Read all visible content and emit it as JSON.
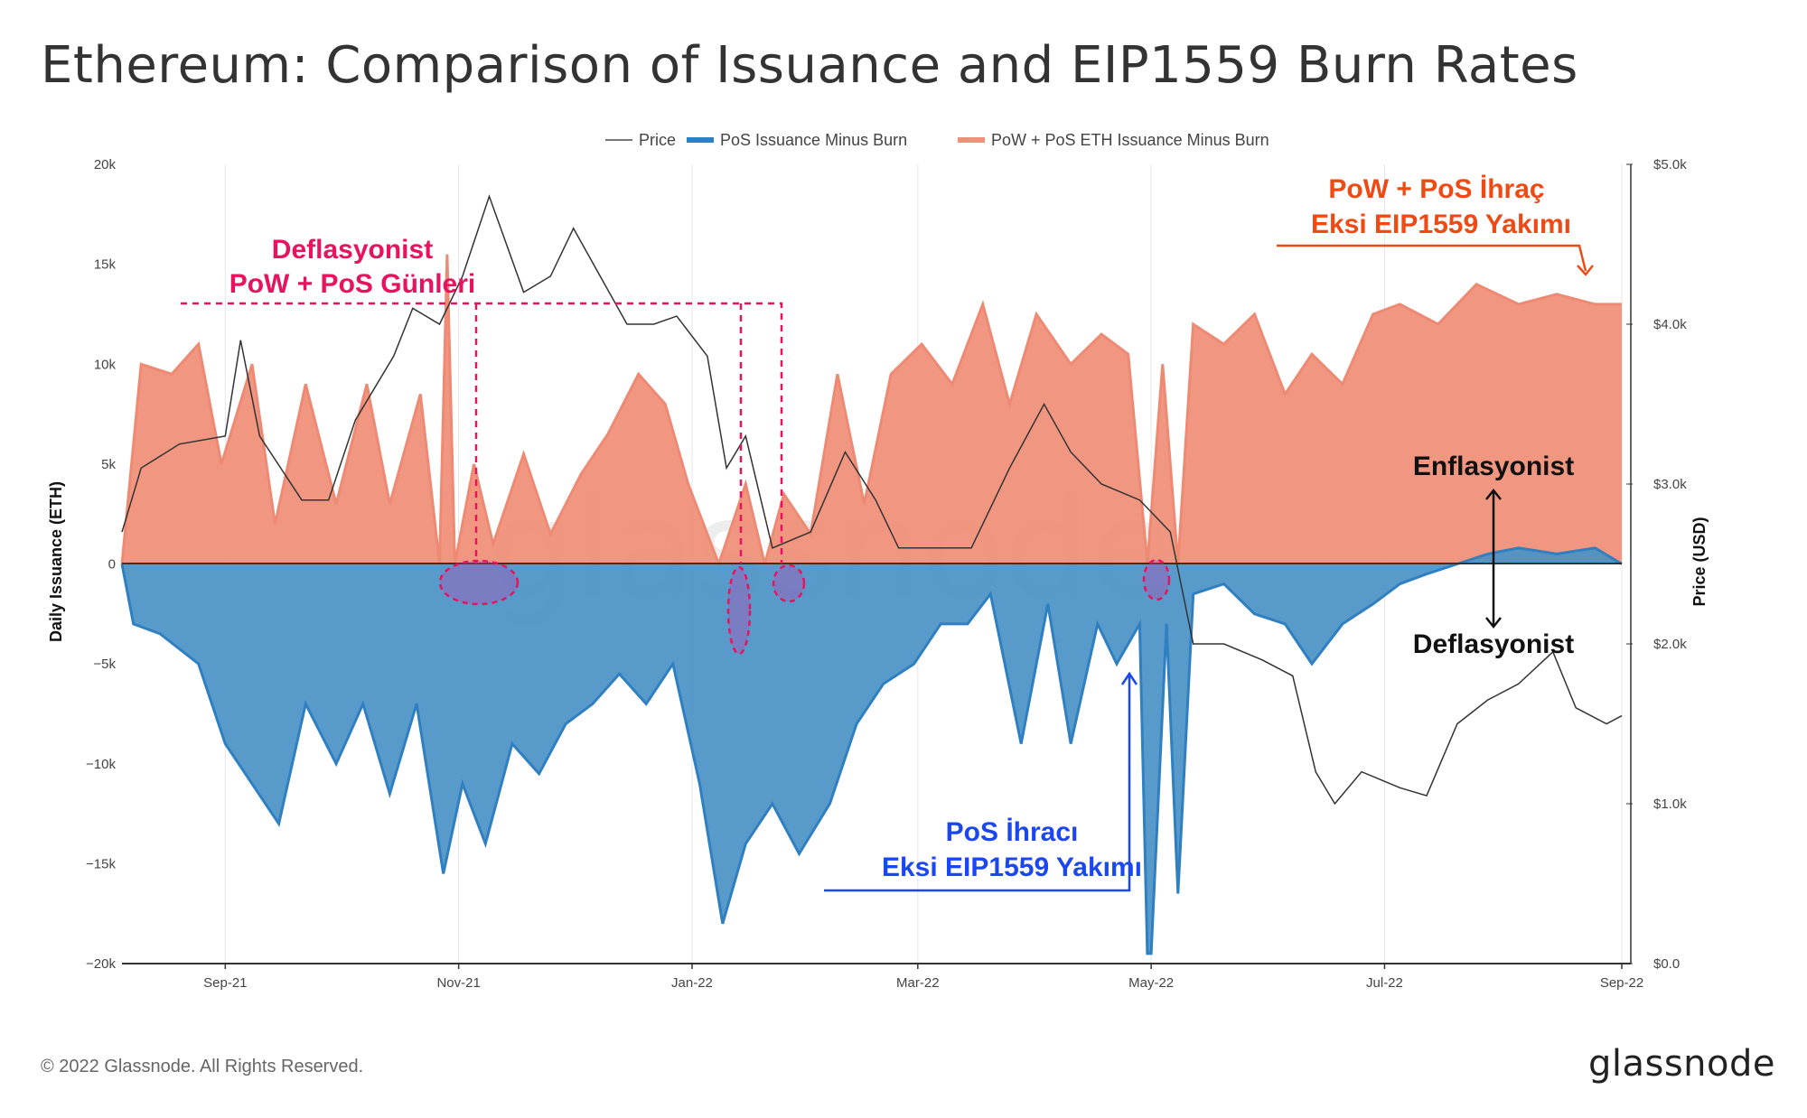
{
  "header": {
    "title": "Ethereum: Comparison of Issuance and EIP1559 Burn Rates"
  },
  "legend": {
    "price": "Price",
    "pos": "PoS Issuance Minus Burn",
    "powpos": "PoW + PoS ETH Issuance Minus Burn"
  },
  "footer": {
    "copyright": "© 2022 Glassnode. All Rights Reserved.",
    "logo": "glassnode"
  },
  "watermark": "glassnode",
  "colors": {
    "pos": "#4a93c7",
    "pos_line": "#2f7fc1",
    "powpos": "#f0907a",
    "powpos_line": "#ee8a74",
    "price": "#333333",
    "pink": "#e8125f",
    "blue": "#1a47f0",
    "orange": "#f04a14"
  },
  "annotations": {
    "deflationary_days": [
      "Deflasyonist",
      "PoW + PoS Günleri"
    ],
    "powpos_label": [
      "PoW + PoS İhraç",
      "Eksi EIP1559 Yakımı"
    ],
    "pos_label": [
      "PoS İhracı",
      "Eksi EIP1559 Yakımı"
    ],
    "inflationary": "Enflasyonist",
    "deflationary": "Deflasyonist"
  },
  "chart_data": {
    "type": "area",
    "title": "Ethereum: Comparison of Issuance and EIP1559 Burn Rates",
    "xlabel": "",
    "ylabel": "Daily Issuance (ETH)",
    "y2label": "Price (USD)",
    "x_range": [
      "2021-08-05",
      "2022-09-01"
    ],
    "ylim": [
      -20000,
      20000
    ],
    "y2lim": [
      0,
      5000
    ],
    "y_ticks": [
      {
        "v": -20000,
        "label": "−20k"
      },
      {
        "v": -15000,
        "label": "−15k"
      },
      {
        "v": -10000,
        "label": "−10k"
      },
      {
        "v": -5000,
        "label": "−5k"
      },
      {
        "v": 0,
        "label": "0"
      },
      {
        "v": 5000,
        "label": "5k"
      },
      {
        "v": 10000,
        "label": "10k"
      },
      {
        "v": 15000,
        "label": "15k"
      },
      {
        "v": 20000,
        "label": "20k"
      }
    ],
    "y2_ticks": [
      {
        "v": 0,
        "label": "$0.0"
      },
      {
        "v": 1000,
        "label": "$1.0k"
      },
      {
        "v": 2000,
        "label": "$2.0k"
      },
      {
        "v": 3000,
        "label": "$3.0k"
      },
      {
        "v": 4000,
        "label": "$4.0k"
      },
      {
        "v": 5000,
        "label": "$5.0k"
      }
    ],
    "x_ticks": [
      {
        "date": "2021-09-01",
        "label": "Sep-21"
      },
      {
        "date": "2021-11-01",
        "label": "Nov-21"
      },
      {
        "date": "2022-01-01",
        "label": "Jan-22"
      },
      {
        "date": "2022-03-01",
        "label": "Mar-22"
      },
      {
        "date": "2022-05-01",
        "label": "May-22"
      },
      {
        "date": "2022-07-01",
        "label": "Jul-22"
      },
      {
        "date": "2022-09-01",
        "label": "Sep-22"
      }
    ],
    "series": [
      {
        "name": "PoW + PoS ETH Issuance Minus Burn",
        "axis": "left",
        "points": [
          [
            "2021-08-05",
            0
          ],
          [
            "2021-08-10",
            10000
          ],
          [
            "2021-08-18",
            9500
          ],
          [
            "2021-08-25",
            11000
          ],
          [
            "2021-08-31",
            5000
          ],
          [
            "2021-09-08",
            10000
          ],
          [
            "2021-09-14",
            2000
          ],
          [
            "2021-09-22",
            9000
          ],
          [
            "2021-09-30",
            3000
          ],
          [
            "2021-10-08",
            9000
          ],
          [
            "2021-10-14",
            3000
          ],
          [
            "2021-10-22",
            8500
          ],
          [
            "2021-10-27",
            0
          ],
          [
            "2021-10-29",
            15500
          ],
          [
            "2021-10-31",
            0
          ],
          [
            "2021-11-05",
            5000
          ],
          [
            "2021-11-10",
            1000
          ],
          [
            "2021-11-18",
            5500
          ],
          [
            "2021-11-25",
            1500
          ],
          [
            "2021-12-03",
            4500
          ],
          [
            "2021-12-10",
            6500
          ],
          [
            "2021-12-18",
            9500
          ],
          [
            "2021-12-25",
            8000
          ],
          [
            "2021-12-31",
            4000
          ],
          [
            "2022-01-08",
            0
          ],
          [
            "2022-01-15",
            4000
          ],
          [
            "2022-01-20",
            0
          ],
          [
            "2022-01-25",
            3500
          ],
          [
            "2022-02-01",
            1500
          ],
          [
            "2022-02-08",
            9500
          ],
          [
            "2022-02-15",
            3000
          ],
          [
            "2022-02-22",
            9500
          ],
          [
            "2022-03-02",
            11000
          ],
          [
            "2022-03-10",
            9000
          ],
          [
            "2022-03-18",
            13000
          ],
          [
            "2022-03-25",
            8000
          ],
          [
            "2022-04-01",
            12500
          ],
          [
            "2022-04-10",
            10000
          ],
          [
            "2022-04-18",
            11500
          ],
          [
            "2022-04-25",
            10500
          ],
          [
            "2022-04-30",
            0
          ],
          [
            "2022-05-04",
            10000
          ],
          [
            "2022-05-08",
            0
          ],
          [
            "2022-05-12",
            12000
          ],
          [
            "2022-05-20",
            11000
          ],
          [
            "2022-05-28",
            12500
          ],
          [
            "2022-06-05",
            8500
          ],
          [
            "2022-06-12",
            10500
          ],
          [
            "2022-06-20",
            9000
          ],
          [
            "2022-06-28",
            12500
          ],
          [
            "2022-07-05",
            13000
          ],
          [
            "2022-07-15",
            12000
          ],
          [
            "2022-07-25",
            14000
          ],
          [
            "2022-08-05",
            13000
          ],
          [
            "2022-08-15",
            13500
          ],
          [
            "2022-08-25",
            13000
          ],
          [
            "2022-09-01",
            13000
          ]
        ]
      },
      {
        "name": "PoS Issuance Minus Burn",
        "axis": "left",
        "points": [
          [
            "2021-08-05",
            0
          ],
          [
            "2021-08-08",
            -3000
          ],
          [
            "2021-08-15",
            -3500
          ],
          [
            "2021-08-25",
            -5000
          ],
          [
            "2021-09-01",
            -9000
          ],
          [
            "2021-09-08",
            -11000
          ],
          [
            "2021-09-15",
            -13000
          ],
          [
            "2021-09-22",
            -7000
          ],
          [
            "2021-09-30",
            -10000
          ],
          [
            "2021-10-07",
            -7000
          ],
          [
            "2021-10-14",
            -11500
          ],
          [
            "2021-10-21",
            -7000
          ],
          [
            "2021-10-28",
            -15500
          ],
          [
            "2021-11-02",
            -11000
          ],
          [
            "2021-11-08",
            -14000
          ],
          [
            "2021-11-15",
            -9000
          ],
          [
            "2021-11-22",
            -10500
          ],
          [
            "2021-11-29",
            -8000
          ],
          [
            "2021-12-06",
            -7000
          ],
          [
            "2021-12-13",
            -5500
          ],
          [
            "2021-12-20",
            -7000
          ],
          [
            "2021-12-27",
            -5000
          ],
          [
            "2022-01-03",
            -11000
          ],
          [
            "2022-01-09",
            -18000
          ],
          [
            "2022-01-15",
            -14000
          ],
          [
            "2022-01-22",
            -12000
          ],
          [
            "2022-01-29",
            -14500
          ],
          [
            "2022-02-06",
            -12000
          ],
          [
            "2022-02-13",
            -8000
          ],
          [
            "2022-02-20",
            -6000
          ],
          [
            "2022-02-28",
            -5000
          ],
          [
            "2022-03-07",
            -3000
          ],
          [
            "2022-03-14",
            -3000
          ],
          [
            "2022-03-20",
            -1500
          ],
          [
            "2022-03-28",
            -9000
          ],
          [
            "2022-04-04",
            -2000
          ],
          [
            "2022-04-10",
            -9000
          ],
          [
            "2022-04-17",
            -3000
          ],
          [
            "2022-04-22",
            -5000
          ],
          [
            "2022-04-28",
            -3000
          ],
          [
            "2022-04-30",
            -19500
          ],
          [
            "2022-05-01",
            -19500
          ],
          [
            "2022-05-05",
            -3000
          ],
          [
            "2022-05-08",
            -16500
          ],
          [
            "2022-05-12",
            -1500
          ],
          [
            "2022-05-20",
            -1000
          ],
          [
            "2022-05-28",
            -2500
          ],
          [
            "2022-06-05",
            -3000
          ],
          [
            "2022-06-12",
            -5000
          ],
          [
            "2022-06-20",
            -3000
          ],
          [
            "2022-06-28",
            -2000
          ],
          [
            "2022-07-05",
            -1000
          ],
          [
            "2022-07-12",
            -500
          ],
          [
            "2022-07-20",
            0
          ],
          [
            "2022-07-28",
            500
          ],
          [
            "2022-08-05",
            800
          ],
          [
            "2022-08-15",
            500
          ],
          [
            "2022-08-25",
            800
          ],
          [
            "2022-09-01",
            0
          ]
        ]
      },
      {
        "name": "Price",
        "axis": "right",
        "points": [
          [
            "2021-08-05",
            2700
          ],
          [
            "2021-08-10",
            3100
          ],
          [
            "2021-08-20",
            3250
          ],
          [
            "2021-09-01",
            3300
          ],
          [
            "2021-09-05",
            3900
          ],
          [
            "2021-09-10",
            3300
          ],
          [
            "2021-09-21",
            2900
          ],
          [
            "2021-09-28",
            2900
          ],
          [
            "2021-10-05",
            3400
          ],
          [
            "2021-10-15",
            3800
          ],
          [
            "2021-10-20",
            4100
          ],
          [
            "2021-10-27",
            4000
          ],
          [
            "2021-11-02",
            4300
          ],
          [
            "2021-11-09",
            4800
          ],
          [
            "2021-11-18",
            4200
          ],
          [
            "2021-11-25",
            4300
          ],
          [
            "2021-12-01",
            4600
          ],
          [
            "2021-12-08",
            4300
          ],
          [
            "2021-12-15",
            4000
          ],
          [
            "2021-12-22",
            4000
          ],
          [
            "2021-12-28",
            4050
          ],
          [
            "2022-01-05",
            3800
          ],
          [
            "2022-01-10",
            3100
          ],
          [
            "2022-01-15",
            3300
          ],
          [
            "2022-01-22",
            2600
          ],
          [
            "2022-02-01",
            2700
          ],
          [
            "2022-02-10",
            3200
          ],
          [
            "2022-02-18",
            2900
          ],
          [
            "2022-02-24",
            2600
          ],
          [
            "2022-03-05",
            2600
          ],
          [
            "2022-03-15",
            2600
          ],
          [
            "2022-03-25",
            3100
          ],
          [
            "2022-04-03",
            3500
          ],
          [
            "2022-04-10",
            3200
          ],
          [
            "2022-04-18",
            3000
          ],
          [
            "2022-04-28",
            2900
          ],
          [
            "2022-05-06",
            2700
          ],
          [
            "2022-05-12",
            2000
          ],
          [
            "2022-05-20",
            2000
          ],
          [
            "2022-05-30",
            1900
          ],
          [
            "2022-06-07",
            1800
          ],
          [
            "2022-06-13",
            1200
          ],
          [
            "2022-06-18",
            1000
          ],
          [
            "2022-06-25",
            1200
          ],
          [
            "2022-07-05",
            1100
          ],
          [
            "2022-07-12",
            1050
          ],
          [
            "2022-07-20",
            1500
          ],
          [
            "2022-07-28",
            1650
          ],
          [
            "2022-08-05",
            1750
          ],
          [
            "2022-08-14",
            1950
          ],
          [
            "2022-08-20",
            1600
          ],
          [
            "2022-08-28",
            1500
          ],
          [
            "2022-09-01",
            1550
          ]
        ]
      }
    ]
  }
}
